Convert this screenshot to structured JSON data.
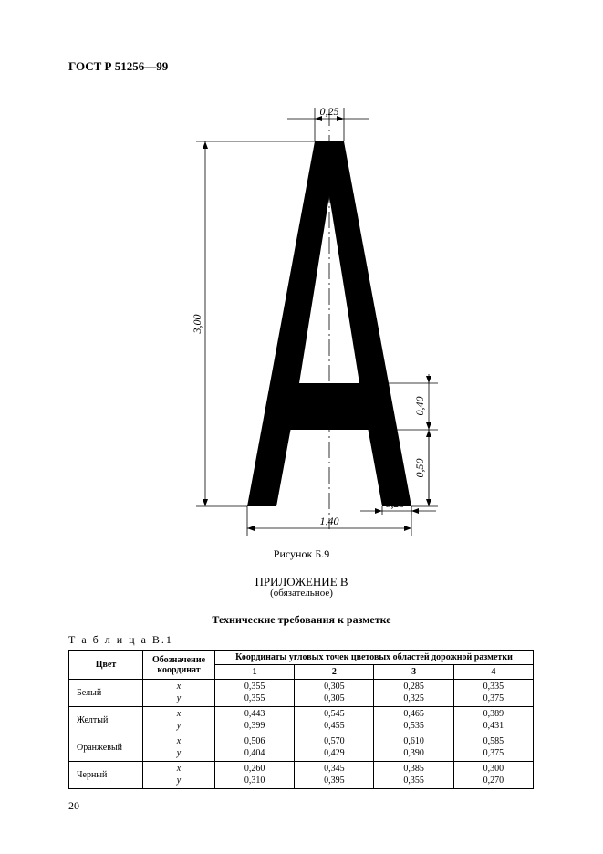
{
  "standard_code": "ГОСТ Р 51256—99",
  "figure": {
    "caption": "Рисунок Б.9",
    "letter_color": "#000000",
    "line_color": "#000000",
    "dims": {
      "top_width": "0,25",
      "height": "3,00",
      "base_width": "1,40",
      "foot_width": "0,25",
      "bar_height": "0,40",
      "bar_to_base": "0,50"
    }
  },
  "appendix": {
    "title": "ПРИЛОЖЕНИЕ В",
    "subtitle": "(обязательное)"
  },
  "section_title": "Технические требования к разметке",
  "table": {
    "label": "Т а б л и ц а   В.1",
    "headers": {
      "color": "Цвет",
      "coord_label": "Обозначение координат",
      "span_title": "Координаты угловых точек цветовых областей дорожной разметки",
      "cols": [
        "1",
        "2",
        "3",
        "4"
      ]
    },
    "rows": [
      {
        "name": "Белый",
        "x": [
          "0,355",
          "0,305",
          "0,285",
          "0,335"
        ],
        "y": [
          "0,355",
          "0,305",
          "0,325",
          "0,375"
        ]
      },
      {
        "name": "Желтый",
        "x": [
          "0,443",
          "0,545",
          "0,465",
          "0,389"
        ],
        "y": [
          "0,399",
          "0,455",
          "0,535",
          "0,431"
        ]
      },
      {
        "name": "Оранжевый",
        "x": [
          "0,506",
          "0,570",
          "0,610",
          "0,585"
        ],
        "y": [
          "0,404",
          "0,429",
          "0,390",
          "0,375"
        ]
      },
      {
        "name": "Черный",
        "x": [
          "0,260",
          "0,345",
          "0,385",
          "0,300"
        ],
        "y": [
          "0,310",
          "0,395",
          "0,355",
          "0,270"
        ]
      }
    ],
    "xy_labels": {
      "x": "x",
      "y": "y"
    }
  },
  "page_number": "20"
}
